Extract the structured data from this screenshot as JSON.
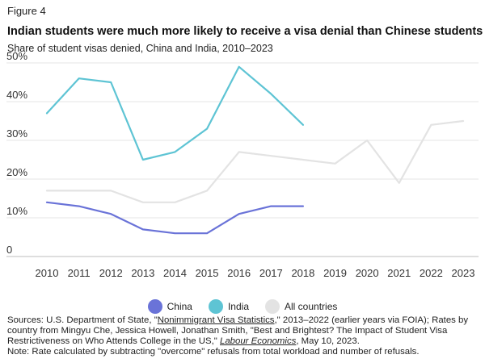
{
  "figure_label": "Figure 4",
  "title": "Indian students were much more likely to receive a visa denial than Chinese students",
  "subtitle": "Share of student visas denied, China and India, 2010–2023",
  "chart_data": {
    "type": "line",
    "x": [
      2010,
      2011,
      2012,
      2013,
      2014,
      2015,
      2016,
      2017,
      2018,
      2019,
      2020,
      2021,
      2022,
      2023
    ],
    "ylim": [
      0,
      50
    ],
    "yticks": [
      0,
      10,
      20,
      30,
      40,
      50
    ],
    "ytick_labels": [
      "0",
      "10%",
      "20%",
      "30%",
      "40%",
      "50%"
    ],
    "xtick_labels": [
      "2010",
      "2011",
      "2012",
      "2013",
      "2014",
      "2015",
      "2016",
      "2017",
      "2018",
      "2019",
      "2020",
      "2021",
      "2022",
      "2023"
    ],
    "grid": true,
    "legend_position": "bottom-center",
    "series": [
      {
        "name": "All countries",
        "color": "#e3e3e3",
        "values": [
          17,
          17,
          17,
          14,
          14,
          17,
          27,
          26,
          25,
          24,
          30,
          19,
          34,
          35
        ]
      },
      {
        "name": "India",
        "color": "#5ec4d4",
        "values": [
          37,
          46,
          45,
          25,
          27,
          33,
          49,
          42,
          34,
          null,
          null,
          null,
          null,
          null
        ]
      },
      {
        "name": "China",
        "color": "#6a73d8",
        "values": [
          14,
          13,
          11,
          7,
          6,
          6,
          11,
          13,
          13,
          null,
          null,
          null,
          null,
          null
        ]
      }
    ]
  },
  "legend": [
    {
      "label": "China",
      "color": "#6a73d8"
    },
    {
      "label": "India",
      "color": "#5ec4d4"
    },
    {
      "label": "All countries",
      "color": "#e3e3e3"
    }
  ],
  "notes": {
    "sources_prefix": "Sources: U.S. Department of State, \"",
    "sources_link": "Nonimmigrant Visa Statistics",
    "sources_mid": ",\" 2013–2022 (earlier years via FOIA); Rates by country from Mingyu Che, Jessica Howell, Jonathan Smith, \"Best and Brightest? The Impact of Student Visa Restrictiveness on Who Attends College in the US,\" ",
    "sources_journal": "Labour Economics",
    "sources_suffix": ", May 10, 2023.",
    "note": "Note: Rate calculated by subtracting \"overcome\" refusals from total workload and number of refusals."
  }
}
